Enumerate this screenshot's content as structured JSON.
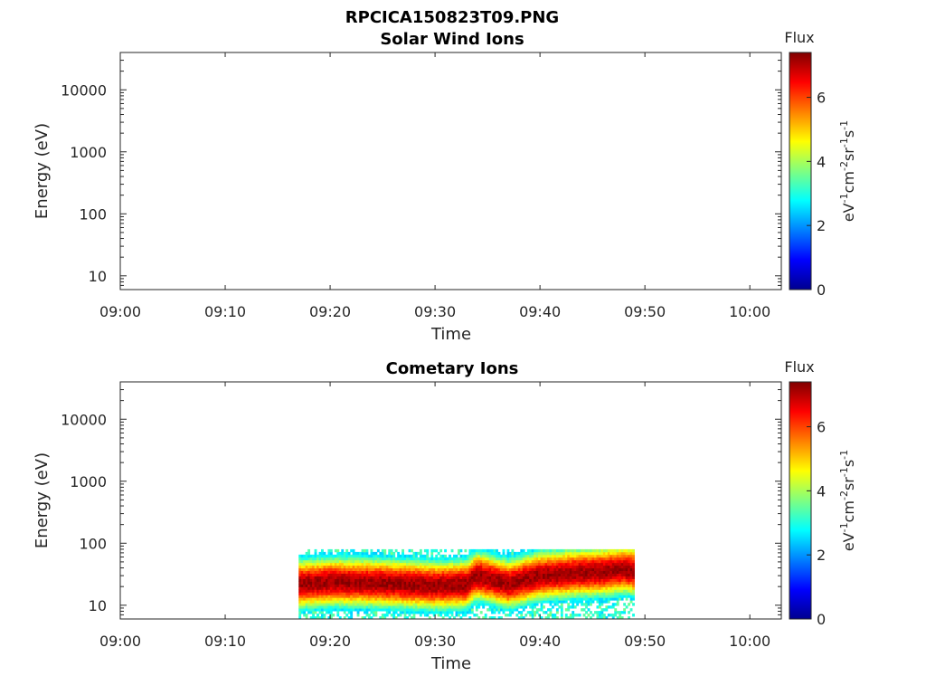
{
  "figure_title": "RPCICA150823T09.PNG",
  "colorbar": {
    "title": "Flux",
    "unit_base": [
      "eV",
      "cm",
      "sr",
      "s"
    ],
    "unit_exp": [
      "-1",
      "-2",
      "-1",
      "-1"
    ],
    "ticks": [
      "0",
      "2",
      "4",
      "6"
    ],
    "range": [
      0,
      7.4
    ],
    "colormap": [
      "#00008f",
      "#0000ff",
      "#0080ff",
      "#00ffff",
      "#80ff80",
      "#ffff00",
      "#ff8000",
      "#ff0000",
      "#800000"
    ]
  },
  "chart_data": [
    {
      "type": "heatmap",
      "title": "Solar Wind Ions",
      "xlabel": "Time",
      "ylabel": "Energy (eV)",
      "xlim": [
        "09:00",
        "10:03"
      ],
      "x_ticks": [
        "09:00",
        "09:10",
        "09:20",
        "09:30",
        "09:40",
        "09:50",
        "10:00"
      ],
      "y_scale": "log",
      "ylim": [
        6,
        40000
      ],
      "y_ticks": [
        "10",
        "100",
        "1000",
        "10000"
      ],
      "data": []
    },
    {
      "type": "heatmap",
      "title": "Cometary Ions",
      "xlabel": "Time",
      "ylabel": "Energy (eV)",
      "xlim": [
        "09:00",
        "10:03"
      ],
      "x_ticks": [
        "09:00",
        "09:10",
        "09:20",
        "09:30",
        "09:40",
        "09:50",
        "10:00"
      ],
      "y_scale": "log",
      "ylim": [
        6,
        40000
      ],
      "y_ticks": [
        "10",
        "100",
        "1000",
        "10000"
      ],
      "data": {
        "time_start": "09:17",
        "time_end": "09:49",
        "energy_top_eV": 80,
        "energy_bottom_eV": 6,
        "peak_energy_eV": [
          [
            "09:17",
            22
          ],
          [
            "09:20",
            24
          ],
          [
            "09:25",
            23
          ],
          [
            "09:30",
            21
          ],
          [
            "09:33",
            22
          ],
          [
            "09:34",
            30
          ],
          [
            "09:37",
            22
          ],
          [
            "09:40",
            30
          ],
          [
            "09:43",
            33
          ],
          [
            "09:46",
            35
          ],
          [
            "09:48",
            38
          ],
          [
            "09:49",
            36
          ]
        ],
        "peak_flux": 7.2
      }
    }
  ]
}
